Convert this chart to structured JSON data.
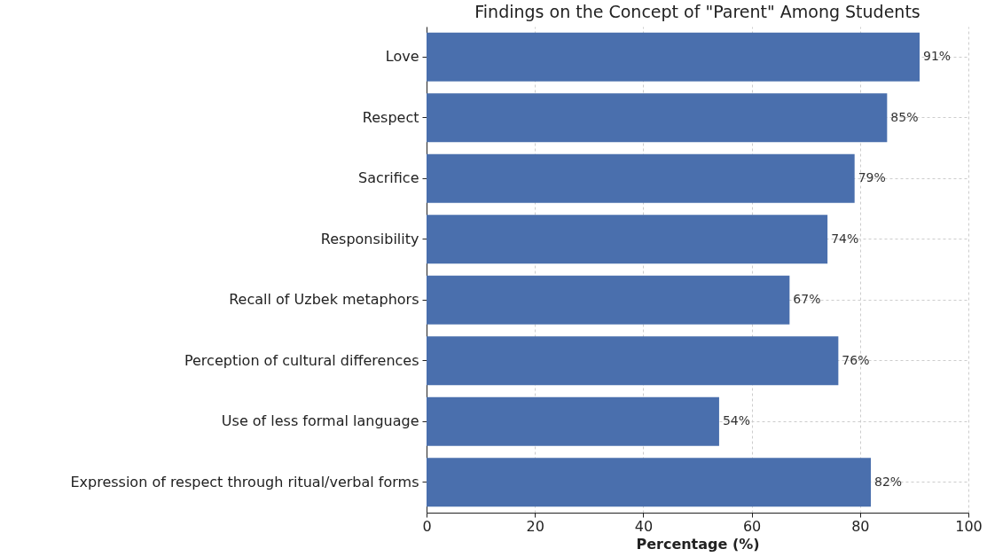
{
  "chart_data": {
    "type": "bar",
    "orientation": "horizontal",
    "title": "Findings on the Concept of \"Parent\" Among Students",
    "xlabel": "Percentage (%)",
    "categories": [
      "Love",
      "Respect",
      "Sacrifice",
      "Responsibility",
      "Recall of Uzbek metaphors",
      "Perception of cultural differences",
      "Use of less formal language",
      "Expression of respect through ritual/verbal forms"
    ],
    "values": [
      91,
      85,
      79,
      74,
      67,
      76,
      54,
      82
    ],
    "value_labels": [
      "91%",
      "85%",
      "79%",
      "74%",
      "67%",
      "76%",
      "54%",
      "82%"
    ],
    "color": "#4a6fad",
    "xlim": [
      0,
      100
    ],
    "xticks": [
      0,
      20,
      40,
      60,
      80,
      100
    ],
    "grid": true
  }
}
